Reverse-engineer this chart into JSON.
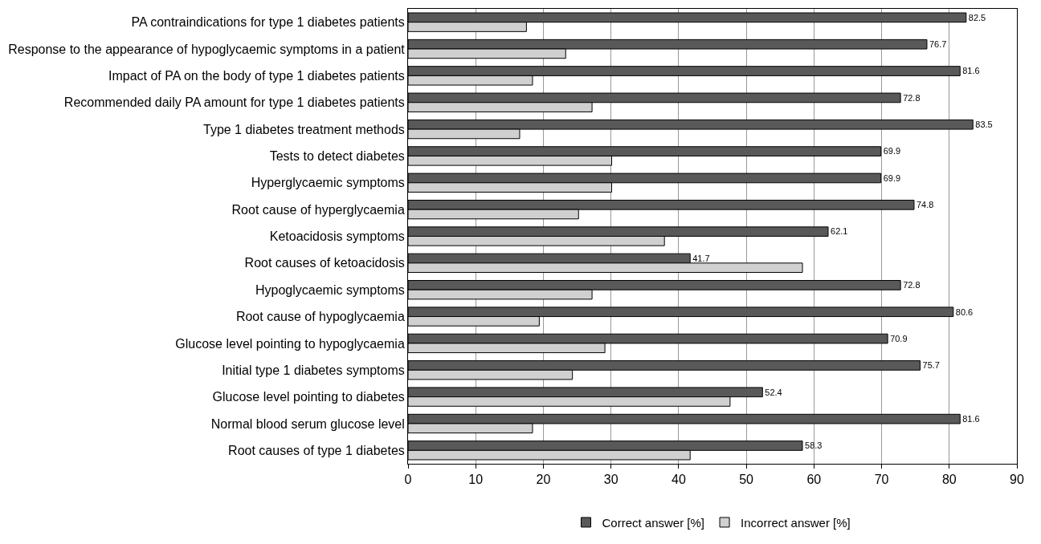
{
  "chart_data": {
    "type": "bar",
    "orientation": "horizontal",
    "categories": [
      "PA contraindications for type 1 diabetes patients",
      "Response to the appearance of hypoglycaemic symptoms in a patient",
      "Impact of PA on the body of type 1 diabetes patients",
      "Recommended daily PA amount for type 1 diabetes patients",
      "Type 1 diabetes treatment methods",
      "Tests to detect diabetes",
      "Hyperglycaemic symptoms",
      "Root cause of hyperglycaemia",
      "Ketoacidosis symptoms",
      "Root causes of ketoacidosis",
      "Hypoglycaemic symptoms",
      "Root cause of hypoglycaemia",
      "Glucose level pointing to hypoglycaemia",
      "Initial type 1 diabetes symptoms",
      "Glucose level pointing to diabetes",
      "Normal blood serum glucose level",
      "Root causes of type 1 diabetes"
    ],
    "series": [
      {
        "name": "Correct answer [%]",
        "color": "#595959",
        "values": [
          82.5,
          76.7,
          81.6,
          72.8,
          83.5,
          69.9,
          69.9,
          74.8,
          62.1,
          41.7,
          72.8,
          80.6,
          70.9,
          75.7,
          52.4,
          81.6,
          58.3
        ],
        "value_labels": [
          "82.5",
          "76.7",
          "81.6",
          "72.8",
          "83.5",
          "69.9",
          "69.9",
          "74.8",
          "62.1",
          "41.7",
          "72.8",
          "80.6",
          "70.9",
          "75.7",
          "52.4",
          "81.6",
          "58.3"
        ]
      },
      {
        "name": "Incorrect answer [%]",
        "color": "#d0d0d0",
        "values": [
          17.5,
          23.3,
          18.4,
          27.2,
          16.5,
          30.1,
          30.1,
          25.2,
          37.9,
          58.3,
          27.2,
          19.4,
          29.1,
          24.3,
          47.6,
          18.4,
          41.7
        ]
      }
    ],
    "xlim": [
      0,
      90
    ],
    "xticks": [
      0,
      10,
      20,
      30,
      40,
      50,
      60,
      70,
      80,
      90
    ],
    "grid": "x",
    "legend": "bottom"
  }
}
